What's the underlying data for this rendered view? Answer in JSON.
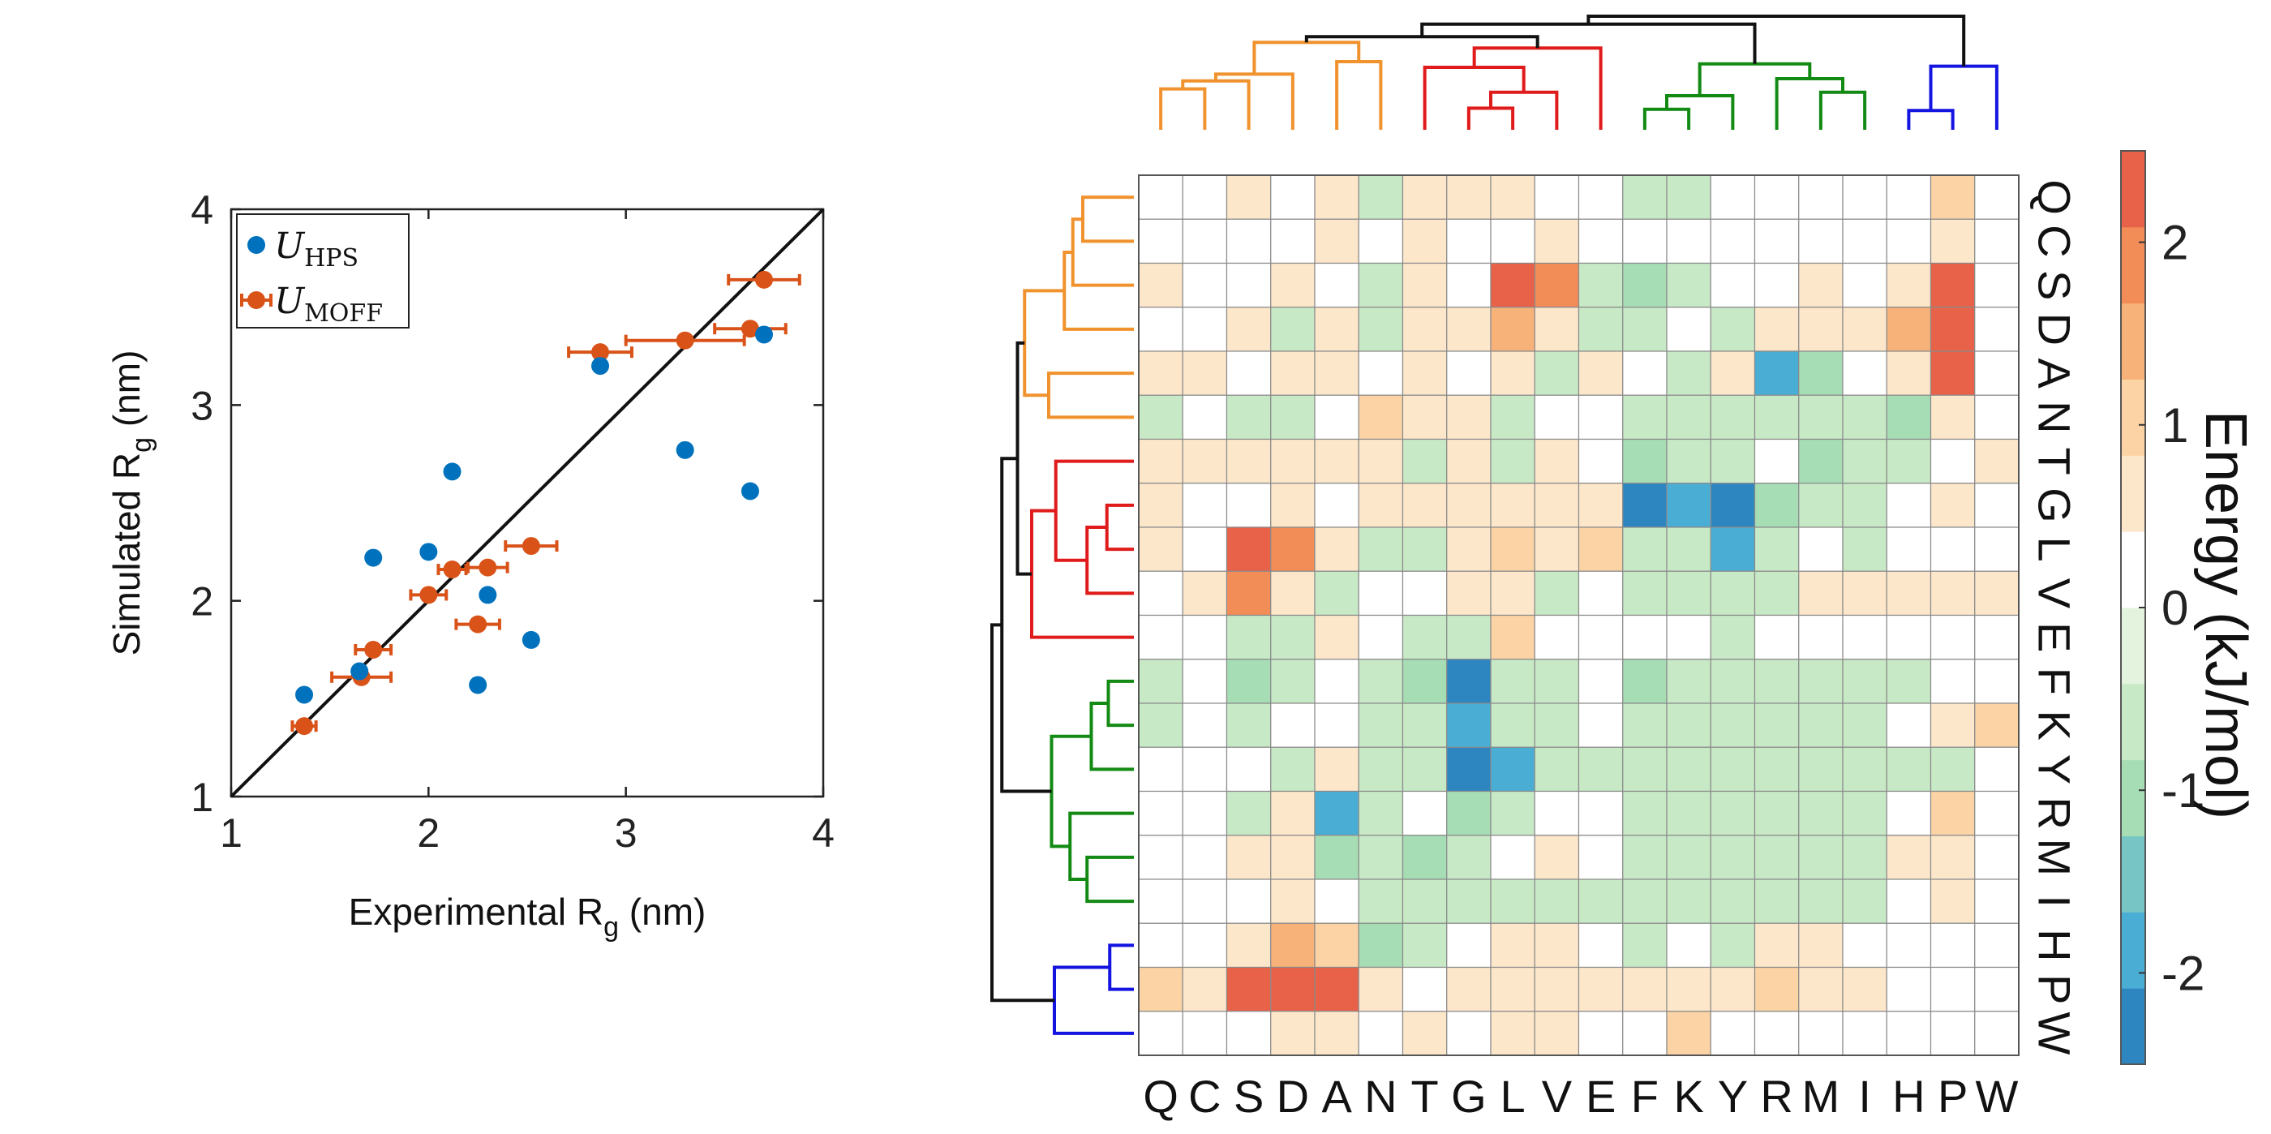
{
  "chart_data": [
    {
      "type": "scatter",
      "xlabel": "Experimental R",
      "xlabel_sub": "g",
      "xlabel_unit": " (nm)",
      "ylabel": "Simulated R",
      "ylabel_sub": "g",
      "ylabel_unit": " (nm)",
      "xlim": [
        1,
        4
      ],
      "ylim": [
        1,
        4
      ],
      "xticks": [
        "1",
        "2",
        "3",
        "4"
      ],
      "yticks": [
        "1",
        "2",
        "3",
        "4"
      ],
      "legend_position": "top-left",
      "reference_line": "y = x",
      "series": [
        {
          "name": "U",
          "name_sub": "HPS",
          "color": "#0072BD",
          "points": [
            {
              "x": 1.37,
              "y": 1.52
            },
            {
              "x": 1.65,
              "y": 1.64
            },
            {
              "x": 1.72,
              "y": 2.22
            },
            {
              "x": 2.0,
              "y": 2.25
            },
            {
              "x": 2.12,
              "y": 2.66
            },
            {
              "x": 2.25,
              "y": 1.57
            },
            {
              "x": 2.3,
              "y": 2.03
            },
            {
              "x": 2.52,
              "y": 1.8
            },
            {
              "x": 2.87,
              "y": 3.2
            },
            {
              "x": 3.3,
              "y": 2.77
            },
            {
              "x": 3.63,
              "y": 2.56
            },
            {
              "x": 3.7,
              "y": 3.36
            }
          ]
        },
        {
          "name": "U",
          "name_sub": "MOFF",
          "color": "#D95319",
          "points": [
            {
              "x": 1.37,
              "y": 1.36,
              "xerr": 0.06
            },
            {
              "x": 1.66,
              "y": 1.61,
              "xerr": 0.15
            },
            {
              "x": 1.72,
              "y": 1.75,
              "xerr": 0.09
            },
            {
              "x": 2.0,
              "y": 2.03,
              "xerr": 0.09
            },
            {
              "x": 2.12,
              "y": 2.16,
              "xerr": 0.07
            },
            {
              "x": 2.25,
              "y": 1.88,
              "xerr": 0.11
            },
            {
              "x": 2.3,
              "y": 2.17,
              "xerr": 0.1
            },
            {
              "x": 2.52,
              "y": 2.28,
              "xerr": 0.13
            },
            {
              "x": 2.87,
              "y": 3.27,
              "xerr": 0.16
            },
            {
              "x": 3.3,
              "y": 3.33,
              "xerr": 0.3
            },
            {
              "x": 3.63,
              "y": 3.39,
              "xerr": 0.18
            },
            {
              "x": 3.7,
              "y": 3.64,
              "xerr": 0.18
            }
          ]
        }
      ]
    },
    {
      "type": "heatmap",
      "column_labels": [
        "Q",
        "C",
        "S",
        "D",
        "A",
        "N",
        "T",
        "G",
        "L",
        "V",
        "E",
        "F",
        "K",
        "Y",
        "R",
        "M",
        "I",
        "H",
        "P",
        "W"
      ],
      "row_labels": [
        "Q",
        "C",
        "S",
        "D",
        "A",
        "N",
        "T",
        "G",
        "L",
        "V",
        "E",
        "F",
        "K",
        "Y",
        "R",
        "M",
        "I",
        "H",
        "P",
        "W"
      ],
      "colorbar": {
        "label": "Energy (kJ/mol)",
        "range": [
          -2.5,
          2.5
        ],
        "ticks": [
          "-2",
          "-1",
          "0",
          "1",
          "2"
        ],
        "levels": 12
      },
      "values": [
        [
          0.0,
          0.0,
          0.8,
          0.0,
          0.8,
          -0.6,
          0.8,
          0.6,
          0.8,
          0.0,
          0.0,
          -0.6,
          -0.6,
          0.0,
          0.0,
          0.0,
          0.0,
          0.0,
          1.2,
          0.0
        ],
        [
          0.0,
          0.0,
          0.0,
          0.0,
          0.5,
          0.0,
          0.5,
          0.0,
          0.0,
          0.5,
          0.0,
          0.0,
          0.0,
          0.0,
          0.0,
          0.0,
          0.0,
          0.0,
          0.5,
          0.0
        ],
        [
          0.8,
          0.0,
          0.0,
          0.8,
          0.0,
          -0.5,
          0.5,
          0.0,
          2.2,
          1.8,
          -0.6,
          -0.9,
          -0.6,
          0.0,
          0.0,
          0.5,
          0.0,
          0.5,
          2.2,
          0.0
        ],
        [
          0.0,
          0.0,
          0.8,
          -0.5,
          0.5,
          -0.5,
          0.5,
          0.5,
          1.6,
          0.5,
          -0.5,
          -0.5,
          0.0,
          -0.5,
          0.5,
          0.5,
          0.8,
          1.6,
          2.2,
          0.0
        ],
        [
          0.8,
          0.5,
          0.0,
          0.5,
          0.5,
          0.0,
          0.5,
          0.0,
          0.5,
          -0.5,
          0.5,
          0.0,
          -0.5,
          0.5,
          -1.8,
          -1.0,
          0.0,
          0.8,
          2.2,
          0.0
        ],
        [
          -0.6,
          0.0,
          -0.5,
          -0.5,
          0.0,
          1.2,
          0.5,
          0.8,
          -0.5,
          0.0,
          0.0,
          -0.5,
          -0.6,
          -0.5,
          -0.5,
          -0.5,
          -0.5,
          -1.0,
          0.5,
          0.0
        ],
        [
          0.8,
          0.8,
          0.5,
          0.5,
          0.5,
          0.5,
          -0.5,
          0.8,
          -0.5,
          0.5,
          0.0,
          -1.0,
          -0.6,
          -0.5,
          0.0,
          -1.0,
          -0.5,
          -0.5,
          0.0,
          0.8
        ],
        [
          0.6,
          0.0,
          0.0,
          0.8,
          0.0,
          0.8,
          0.8,
          0.8,
          0.8,
          0.5,
          0.5,
          -2.4,
          -2.0,
          -2.4,
          -0.9,
          -0.5,
          -0.5,
          0.0,
          0.5,
          0.0
        ],
        [
          0.8,
          0.0,
          2.2,
          1.8,
          0.5,
          -0.5,
          -0.5,
          0.8,
          1.0,
          0.5,
          1.2,
          -0.5,
          -0.6,
          -2.0,
          -0.5,
          0.0,
          -0.5,
          0.0,
          0.0,
          0.0
        ],
        [
          0.0,
          0.5,
          1.8,
          0.5,
          -0.5,
          0.0,
          0.0,
          0.8,
          0.5,
          -0.6,
          0.0,
          -0.5,
          -0.5,
          -0.5,
          -0.5,
          0.8,
          0.5,
          0.5,
          0.8,
          0.5
        ],
        [
          0.0,
          0.0,
          -0.6,
          -0.5,
          0.5,
          0.0,
          -0.5,
          -0.5,
          1.2,
          0.0,
          0.0,
          0.0,
          0.0,
          -0.6,
          0.0,
          0.0,
          0.0,
          0.0,
          0.0,
          0.0
        ],
        [
          -0.6,
          0.0,
          -0.9,
          -0.5,
          0.0,
          -0.5,
          -1.0,
          -2.4,
          -0.5,
          -0.5,
          0.0,
          -0.9,
          -0.5,
          -0.5,
          -0.5,
          -0.5,
          -0.5,
          -0.6,
          0.0,
          0.0
        ],
        [
          -0.5,
          0.0,
          -0.5,
          0.0,
          0.0,
          -0.5,
          -0.5,
          -2.0,
          -0.5,
          -0.5,
          0.0,
          -0.5,
          -0.5,
          -0.5,
          -0.6,
          -0.5,
          -0.5,
          0.0,
          0.5,
          1.2
        ],
        [
          0.0,
          0.0,
          0.0,
          -0.5,
          0.5,
          -0.5,
          -0.5,
          -2.4,
          -2.0,
          -0.5,
          -0.6,
          -0.5,
          -0.5,
          -0.5,
          -0.5,
          -0.5,
          -0.5,
          -0.5,
          -0.5,
          0.0
        ],
        [
          0.0,
          0.0,
          -0.5,
          0.5,
          -2.0,
          -0.5,
          0.0,
          -0.9,
          -0.6,
          0.0,
          0.0,
          -0.5,
          -0.5,
          -0.5,
          -0.5,
          -0.5,
          -0.5,
          0.0,
          1.2,
          0.0
        ],
        [
          0.0,
          0.0,
          0.5,
          0.5,
          -1.0,
          -0.5,
          -1.0,
          -0.5,
          0.0,
          0.8,
          0.0,
          -0.5,
          -0.5,
          -0.5,
          -0.5,
          -0.5,
          -0.5,
          0.5,
          0.5,
          0.0
        ],
        [
          0.0,
          0.0,
          0.0,
          0.8,
          0.0,
          -0.5,
          -0.5,
          -0.5,
          -0.5,
          -0.5,
          -0.5,
          -0.5,
          -0.5,
          -0.5,
          -0.5,
          -0.5,
          -0.5,
          0.0,
          0.8,
          0.0
        ],
        [
          0.0,
          0.0,
          0.5,
          1.6,
          1.2,
          -1.0,
          -0.5,
          0.0,
          0.5,
          0.5,
          0.0,
          -0.6,
          0.0,
          -0.5,
          0.5,
          0.5,
          0.0,
          0.0,
          0.0,
          0.0
        ],
        [
          1.2,
          0.5,
          2.2,
          2.2,
          2.2,
          0.5,
          0.0,
          0.5,
          0.5,
          0.8,
          0.5,
          0.5,
          0.5,
          0.5,
          1.2,
          0.5,
          0.8,
          0.0,
          0.0,
          0.0
        ],
        [
          0.0,
          0.0,
          0.0,
          0.5,
          0.5,
          0.0,
          0.8,
          0.0,
          0.5,
          0.8,
          0.0,
          0.0,
          1.2,
          0.0,
          0.0,
          0.0,
          0.0,
          0.0,
          0.0,
          0.0
        ]
      ],
      "clusters": [
        {
          "name": "orange",
          "color": "#F0922E",
          "members": [
            "Q",
            "C",
            "S",
            "D",
            "A",
            "N"
          ]
        },
        {
          "name": "red",
          "color": "#E01B1B",
          "members": [
            "T",
            "G",
            "L",
            "V",
            "E"
          ]
        },
        {
          "name": "green",
          "color": "#138A13",
          "members": [
            "F",
            "K",
            "Y",
            "R",
            "M",
            "I"
          ]
        },
        {
          "name": "blue",
          "color": "#1414E0",
          "members": [
            "H",
            "P",
            "W"
          ]
        }
      ]
    }
  ]
}
